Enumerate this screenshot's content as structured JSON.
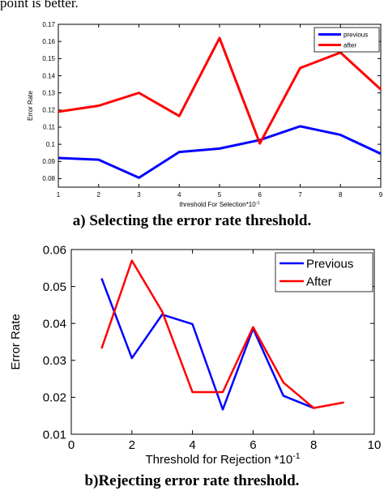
{
  "top_text": "point is better.",
  "captions": {
    "a": "a) Selecting  the error rate  threshold.",
    "b": "b)Rejecting error rate threshold."
  },
  "chart_data": [
    {
      "type": "line",
      "xlabel": "threshold For Selection*10",
      "xlabel_sup": "-1",
      "ylabel": "Error Rate",
      "xlim": [
        1,
        9
      ],
      "ylim": [
        0.075,
        0.17
      ],
      "xticks": [
        1,
        2,
        3,
        4,
        5,
        6,
        7,
        8,
        9
      ],
      "xtick_labels": [
        "1",
        "2",
        "3",
        "4",
        "5",
        "6",
        "7",
        "8",
        "9"
      ],
      "yticks": [
        0.08,
        0.09,
        0.1,
        0.11,
        0.12,
        0.13,
        0.14,
        0.15,
        0.16,
        0.17
      ],
      "ytick_labels": [
        "0.08",
        "0.09",
        "0.1",
        "0.11",
        "0.12",
        "0.13",
        "0.14",
        "0.15",
        "0.16",
        "0.17"
      ],
      "grid": false,
      "legend_position": "top-right",
      "series": [
        {
          "name": "previous",
          "color": "#0000ff",
          "x": [
            1,
            2,
            3,
            4,
            5,
            6,
            7,
            8,
            9
          ],
          "y": [
            0.092,
            0.091,
            0.0805,
            0.0955,
            0.0975,
            0.1025,
            0.1105,
            0.1055,
            0.0945
          ]
        },
        {
          "name": "after",
          "color": "#ff0000",
          "x": [
            1,
            2,
            3,
            4,
            5,
            6,
            7,
            8,
            9
          ],
          "y": [
            0.119,
            0.1225,
            0.13,
            0.1165,
            0.162,
            0.1005,
            0.1445,
            0.1535,
            0.132
          ]
        }
      ]
    },
    {
      "type": "line",
      "xlabel": "Threshold for Rejection *10",
      "xlabel_sup": "-1",
      "ylabel": "Error Rate",
      "xlim": [
        0,
        10
      ],
      "ylim": [
        0.01,
        0.06
      ],
      "xticks": [
        0,
        2,
        4,
        6,
        8,
        10
      ],
      "xtick_labels": [
        "0",
        "2",
        "4",
        "6",
        "8",
        "10"
      ],
      "yticks": [
        0.01,
        0.02,
        0.03,
        0.04,
        0.05,
        0.06
      ],
      "ytick_labels": [
        "0.01",
        "0.02",
        "0.03",
        "0.04",
        "0.05",
        "0.06"
      ],
      "grid": false,
      "legend_position": "top-right",
      "series": [
        {
          "name": "Previous",
          "color": "#0000ff",
          "x": [
            1,
            2,
            3,
            4,
            5,
            6,
            7,
            8
          ],
          "y": [
            0.0522,
            0.0306,
            0.0424,
            0.0398,
            0.0167,
            0.0386,
            0.0204,
            0.0171
          ]
        },
        {
          "name": "After",
          "color": "#ff0000",
          "x": [
            1,
            2,
            3,
            4,
            5,
            6,
            7,
            8,
            9
          ],
          "y": [
            0.0332,
            0.057,
            0.0432,
            0.0214,
            0.0214,
            0.039,
            0.024,
            0.0171,
            0.0186
          ]
        }
      ]
    }
  ]
}
